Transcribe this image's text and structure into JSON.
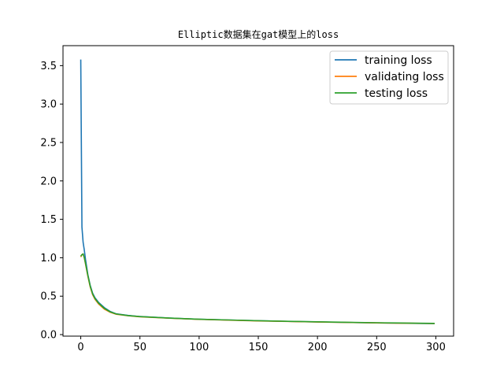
{
  "chart_data": {
    "type": "line",
    "title": "Elliptic数据集在gat模型上的loss",
    "xlabel": "",
    "ylabel": "",
    "xlim": [
      -15,
      315
    ],
    "ylim": [
      -0.02,
      3.76
    ],
    "xticks": [
      0,
      50,
      100,
      150,
      200,
      250,
      300
    ],
    "yticks": [
      0.0,
      0.5,
      1.0,
      1.5,
      2.0,
      2.5,
      3.0,
      3.5
    ],
    "xtick_labels": [
      "0",
      "50",
      "100",
      "150",
      "200",
      "250",
      "300"
    ],
    "ytick_labels": [
      "0.0",
      "0.5",
      "1.0",
      "1.5",
      "2.0",
      "2.5",
      "3.0",
      "3.5"
    ],
    "grid": false,
    "legend_position": "upper right",
    "series": [
      {
        "name": "training loss",
        "color": "#1f77b4",
        "points": [
          [
            0,
            3.58
          ],
          [
            1,
            1.4
          ],
          [
            2,
            1.2
          ],
          [
            3,
            1.1
          ],
          [
            4,
            0.98
          ],
          [
            5,
            0.88
          ],
          [
            6,
            0.78
          ],
          [
            8,
            0.64
          ],
          [
            10,
            0.54
          ],
          [
            12,
            0.48
          ],
          [
            15,
            0.42
          ],
          [
            20,
            0.35
          ],
          [
            25,
            0.3
          ],
          [
            30,
            0.27
          ],
          [
            40,
            0.25
          ],
          [
            50,
            0.235
          ],
          [
            75,
            0.215
          ],
          [
            100,
            0.2
          ],
          [
            125,
            0.19
          ],
          [
            150,
            0.18
          ],
          [
            175,
            0.172
          ],
          [
            200,
            0.165
          ],
          [
            225,
            0.158
          ],
          [
            250,
            0.152
          ],
          [
            275,
            0.147
          ],
          [
            299,
            0.143
          ]
        ]
      },
      {
        "name": "validating loss",
        "color": "#ff7f0e",
        "points": [
          [
            0,
            1.01
          ],
          [
            1,
            1.04
          ],
          [
            2,
            1.05
          ],
          [
            3,
            1.0
          ],
          [
            4,
            0.92
          ],
          [
            5,
            0.84
          ],
          [
            6,
            0.76
          ],
          [
            8,
            0.62
          ],
          [
            10,
            0.52
          ],
          [
            12,
            0.46
          ],
          [
            15,
            0.4
          ],
          [
            20,
            0.33
          ],
          [
            25,
            0.29
          ],
          [
            30,
            0.265
          ],
          [
            40,
            0.245
          ],
          [
            50,
            0.232
          ],
          [
            75,
            0.213
          ],
          [
            100,
            0.198
          ],
          [
            125,
            0.188
          ],
          [
            150,
            0.178
          ],
          [
            175,
            0.171
          ],
          [
            200,
            0.164
          ],
          [
            225,
            0.158
          ],
          [
            250,
            0.152
          ],
          [
            275,
            0.148
          ],
          [
            299,
            0.144
          ]
        ]
      },
      {
        "name": "testing loss",
        "color": "#2ca02c",
        "points": [
          [
            0,
            1.02
          ],
          [
            1,
            1.04
          ],
          [
            2,
            1.05
          ],
          [
            3,
            1.0
          ],
          [
            4,
            0.93
          ],
          [
            5,
            0.85
          ],
          [
            6,
            0.77
          ],
          [
            8,
            0.63
          ],
          [
            10,
            0.53
          ],
          [
            12,
            0.47
          ],
          [
            15,
            0.41
          ],
          [
            20,
            0.34
          ],
          [
            25,
            0.295
          ],
          [
            30,
            0.268
          ],
          [
            40,
            0.247
          ],
          [
            50,
            0.234
          ],
          [
            75,
            0.215
          ],
          [
            100,
            0.2
          ],
          [
            125,
            0.19
          ],
          [
            150,
            0.18
          ],
          [
            175,
            0.173
          ],
          [
            200,
            0.166
          ],
          [
            225,
            0.16
          ],
          [
            250,
            0.154
          ],
          [
            275,
            0.15
          ],
          [
            299,
            0.146
          ]
        ]
      }
    ]
  }
}
